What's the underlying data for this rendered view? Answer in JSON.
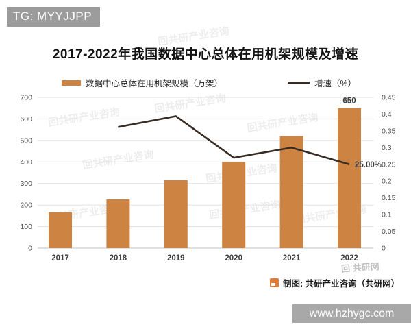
{
  "badge": {
    "text": "TG: MYYJJPP"
  },
  "title": "2017-2022年我国数据中心总体在用机架规模及增速",
  "legend": [
    {
      "label": "数据中心总体在用机架规模（万架）",
      "color": "#cd8442",
      "type": "bar"
    },
    {
      "label": "增速（%）",
      "color": "#382d24",
      "type": "line"
    }
  ],
  "chart_data": {
    "type": "bar",
    "title": "2017-2022年我国数据中心总体在用机架规模及增速",
    "categories": [
      "2017",
      "2018",
      "2019",
      "2020",
      "2021",
      "2022"
    ],
    "series": [
      {
        "name": "数据中心总体在用机架规模（万架）",
        "type": "bar",
        "axis": "left",
        "color": "#cd8442",
        "values": [
          166,
          226,
          315,
          400,
          520,
          650
        ]
      },
      {
        "name": "增速（%）",
        "type": "line",
        "axis": "right",
        "color": "#382d24",
        "values": [
          null,
          0.3614,
          0.3938,
          0.2698,
          0.3,
          0.25
        ]
      }
    ],
    "left_axis": {
      "min": 0,
      "max": 700,
      "step": 100,
      "ticks": [
        "0",
        "100",
        "200",
        "300",
        "400",
        "500",
        "600",
        "700"
      ]
    },
    "right_axis": {
      "min": 0,
      "max": 0.45,
      "step": 0.05,
      "ticks": [
        "0",
        "0.05",
        "0.1",
        "0.15",
        "0.2",
        "0.25",
        "0.3",
        "0.35",
        "0.4",
        "0.45"
      ]
    },
    "annotations": [
      {
        "text": "650",
        "type": "bar_top",
        "category": "2022"
      },
      {
        "text": "25.00%",
        "type": "line_end",
        "category": "2022"
      }
    ],
    "grid": true,
    "legend_position": "top"
  },
  "attribution": {
    "text": "制图: 共研产业咨询（共研网）"
  },
  "url_box": {
    "text": "www.hzhygc.com"
  },
  "watermarks": {
    "tile_text": "回共研产业咨询",
    "stamp_text": "回 共研网"
  }
}
